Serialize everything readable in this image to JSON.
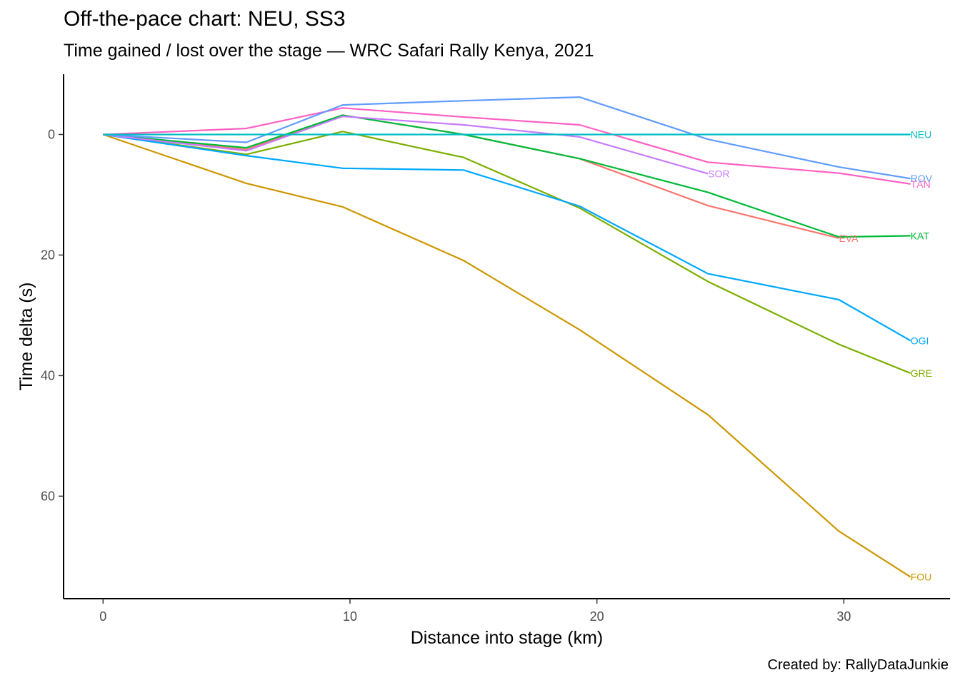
{
  "chart_data": {
    "type": "line",
    "title": "Off-the-pace chart: NEU, SS3",
    "subtitle": "Time gained / lost over the stage — WRC Safari Rally Kenya, 2021",
    "caption": "Created by: RallyDataJunkie",
    "xlabel": "Distance into stage (km)",
    "ylabel": "Time delta (s)",
    "xlim": [
      -1.6,
      34.3
    ],
    "ylim": [
      -10,
      77
    ],
    "y_reversed": true,
    "x_ticks": [
      0,
      10,
      20,
      30
    ],
    "y_ticks": [
      0,
      20,
      40,
      60
    ],
    "grid": false,
    "legend": "none (labels at line ends)",
    "series": [
      {
        "name": "FOU",
        "color": "#CD9600",
        "x": [
          0,
          5.8,
          9.7,
          14.6,
          19.3,
          24.5,
          29.8,
          32.7
        ],
        "y": [
          0,
          8.1,
          12.0,
          20.9,
          32.4,
          46.5,
          65.8,
          73.4
        ]
      },
      {
        "name": "GRE",
        "color": "#7CAE00",
        "x": [
          0,
          5.8,
          9.7,
          14.6,
          19.3,
          24.5,
          29.8,
          32.7
        ],
        "y": [
          0,
          3.3,
          -0.5,
          3.8,
          12.2,
          24.4,
          34.8,
          39.6
        ]
      },
      {
        "name": "OGI",
        "color": "#00A9FF",
        "x": [
          0,
          5.8,
          9.7,
          14.6,
          19.3,
          24.5,
          29.8,
          32.7
        ],
        "y": [
          0,
          3.5,
          5.6,
          5.9,
          11.9,
          23.1,
          27.4,
          34.2
        ]
      },
      {
        "name": "EVA",
        "color": "#F8766D",
        "x": [
          0,
          5.8,
          9.7,
          14.6,
          19.3,
          24.5,
          29.8
        ],
        "y": [
          0,
          2.5,
          -3.2,
          0,
          4.0,
          11.8,
          17.2
        ]
      },
      {
        "name": "KAT",
        "color": "#00BA38",
        "x": [
          0,
          5.8,
          9.7,
          14.6,
          19.3,
          24.5,
          29.8,
          32.7
        ],
        "y": [
          0,
          2.2,
          -3.2,
          0,
          4.0,
          9.6,
          17.0,
          16.8
        ]
      },
      {
        "name": "SOR",
        "color": "#C77CFF",
        "x": [
          0,
          5.8,
          9.7,
          14.6,
          19.3,
          24.5
        ],
        "y": [
          0,
          2.7,
          -3.0,
          -1.6,
          0.4,
          6.5
        ]
      },
      {
        "name": "TÄN",
        "color": "#FF61C3",
        "x": [
          0,
          5.8,
          9.7,
          14.6,
          19.3,
          24.5,
          29.8,
          32.7
        ],
        "y": [
          0,
          -1.0,
          -4.4,
          -2.9,
          -1.6,
          4.6,
          6.4,
          8.2
        ]
      },
      {
        "name": "ROV",
        "color": "#619CFF",
        "x": [
          0,
          5.8,
          9.7,
          14.6,
          19.3,
          24.5,
          29.8,
          32.7
        ],
        "y": [
          0,
          1.3,
          -4.9,
          -5.6,
          -6.2,
          0.8,
          5.4,
          7.3
        ]
      },
      {
        "name": "NEU",
        "color": "#00BFC4",
        "x": [
          0,
          5.8,
          9.7,
          14.6,
          19.3,
          24.5,
          29.8,
          32.7
        ],
        "y": [
          0,
          0,
          0,
          0,
          0,
          0,
          0,
          0
        ]
      }
    ]
  }
}
